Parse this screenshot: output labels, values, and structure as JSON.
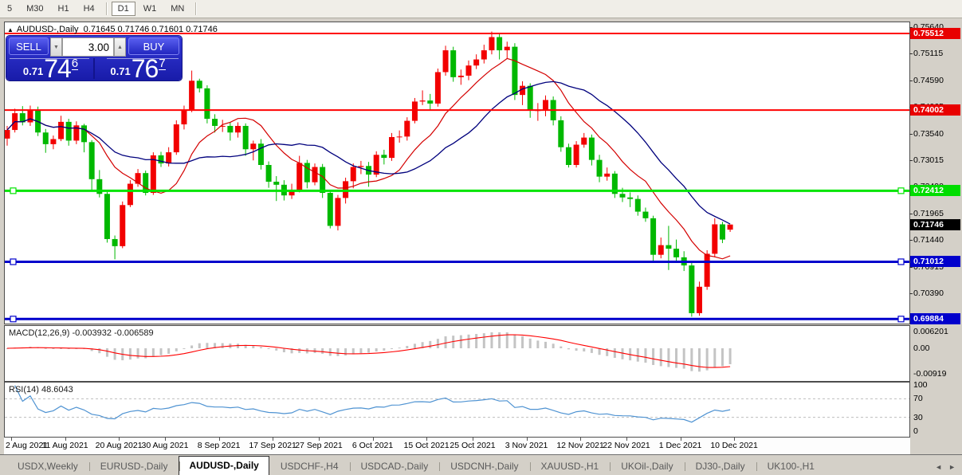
{
  "toolbar": {
    "timeframes": [
      "5",
      "M30",
      "H1",
      "H4",
      "D1",
      "W1",
      "MN"
    ],
    "active": "D1"
  },
  "chart_header": {
    "collapse_icon": "▲",
    "symbol": "AUDUSD-,Daily",
    "ohlc": "0.71645 0.71746 0.71601 0.71746"
  },
  "trade_panel": {
    "sell_label": "SELL",
    "buy_label": "BUY",
    "volume": "3.00",
    "spin_down": "▼",
    "spin_up": "▲",
    "sell_price": {
      "prefix": "0.71",
      "big": "74",
      "sup": "6"
    },
    "buy_price": {
      "prefix": "0.71",
      "big": "76",
      "sup": "7"
    }
  },
  "price_axis": {
    "ticks": [
      "0.75640",
      "0.75115",
      "0.74590",
      "0.74065",
      "0.73540",
      "0.73015",
      "0.72490",
      "0.71965",
      "0.71440",
      "0.70915",
      "0.70390"
    ],
    "badges": [
      {
        "text": "0.75512",
        "price": 0.75512,
        "bg": "#e80000"
      },
      {
        "text": "0.74002",
        "price": 0.74002,
        "bg": "#e80000"
      },
      {
        "text": "0.72412",
        "price": 0.72412,
        "bg": "#00dd00"
      },
      {
        "text": "0.71746",
        "price": 0.71746,
        "bg": "#000000"
      },
      {
        "text": "0.71012",
        "price": 0.71012,
        "bg": "#0000cc"
      },
      {
        "text": "0.69884",
        "price": 0.69884,
        "bg": "#0000cc"
      }
    ]
  },
  "macd": {
    "label": "MACD(12,26,9) -0.003932 -0.006589",
    "axis_labels": [
      {
        "v": 0.006201,
        "t": "0.006201"
      },
      {
        "v": 0.0,
        "t": "0.00"
      },
      {
        "v": -0.00919,
        "t": "-0.00919"
      }
    ]
  },
  "rsi": {
    "label": "RSI(14) 48.6043",
    "axis_labels": [
      {
        "v": 100,
        "t": "100"
      },
      {
        "v": 70,
        "t": "70"
      },
      {
        "v": 30,
        "t": "30"
      },
      {
        "v": 0,
        "t": "0"
      }
    ],
    "dashed_levels": [
      70,
      30
    ]
  },
  "date_axis": {
    "labels": [
      "2 Aug 2021",
      "11 Aug 2021",
      "20 Aug 2021",
      "30 Aug 2021",
      "8 Sep 2021",
      "17 Sep 2021",
      "27 Sep 2021",
      "6 Oct 2021",
      "15 Oct 2021",
      "25 Oct 2021",
      "3 Nov 2021",
      "12 Nov 2021",
      "22 Nov 2021",
      "1 Dec 2021",
      "10 Dec 2021"
    ],
    "label_bars": [
      0,
      7,
      14,
      20,
      27,
      34,
      40,
      47,
      54,
      60,
      67,
      74,
      80,
      87,
      94
    ]
  },
  "tabs": {
    "items": [
      "USDX,Weekly",
      "EURUSD-,Daily",
      "AUDUSD-,Daily",
      "USDCHF-,H4",
      "USDCAD-,Daily",
      "USDCNH-,Daily",
      "XAUUSD-,H1",
      "UKOil-,Daily",
      "DJ30-,Daily",
      "UK100-,H1"
    ],
    "active": "AUDUSD-,Daily",
    "scroll_left": "◄",
    "scroll_right": "►"
  },
  "colors": {
    "bull": "#f20000",
    "bear": "#00b800",
    "ma_fast": "#d40000",
    "ma_slow": "#00007d",
    "macd_hist": "#c4c4c4",
    "macd_signal": "#ff0000",
    "rsi_line": "#4f93d2",
    "dashed_grid": "#bdbdbd"
  },
  "chart_data": {
    "type": "candlestick",
    "symbol": "AUDUSD-",
    "timeframe": "Daily",
    "current_bar": {
      "open": 0.71645,
      "high": 0.71746,
      "low": 0.71601,
      "close": 0.71746
    },
    "ylim": [
      0.6981,
      0.757
    ],
    "x_range": [
      "2 Aug 2021",
      "10 Dec 2021"
    ],
    "moving_averages": [
      {
        "period": 10,
        "color": "#d40000"
      },
      {
        "period": 20,
        "color": "#00007d"
      }
    ],
    "indicators": {
      "macd": {
        "fast": 12,
        "slow": 26,
        "signal": 9,
        "main_value": -0.003932,
        "signal_value": -0.006589,
        "range": [
          -0.00919,
          0.006201
        ]
      },
      "rsi": {
        "period": 14,
        "value": 48.6043,
        "levels": [
          30,
          70
        ],
        "range": [
          0,
          100
        ]
      }
    },
    "levels": [
      {
        "price": 0.75512,
        "color": "#ff0000",
        "width": 2,
        "handles": false
      },
      {
        "price": 0.74002,
        "color": "#ff0000",
        "width": 2,
        "handles": false
      },
      {
        "price": 0.72412,
        "color": "#00e400",
        "width": 3,
        "handles": true
      },
      {
        "price": 0.71012,
        "color": "#0000cc",
        "width": 3,
        "handles": true
      },
      {
        "price": 0.69884,
        "color": "#0000cc",
        "width": 3,
        "handles": true
      }
    ],
    "ohlc": [
      [
        0.7344,
        0.7369,
        0.733,
        0.7361
      ],
      [
        0.7361,
        0.7403,
        0.7356,
        0.7394
      ],
      [
        0.7394,
        0.7408,
        0.737,
        0.7376
      ],
      [
        0.7376,
        0.7409,
        0.7369,
        0.7401
      ],
      [
        0.7401,
        0.7407,
        0.7349,
        0.7356
      ],
      [
        0.7356,
        0.7363,
        0.7316,
        0.7333
      ],
      [
        0.7333,
        0.735,
        0.7323,
        0.7343
      ],
      [
        0.7343,
        0.7389,
        0.7339,
        0.7377
      ],
      [
        0.7377,
        0.7383,
        0.733,
        0.734
      ],
      [
        0.734,
        0.7378,
        0.7333,
        0.737
      ],
      [
        0.737,
        0.7373,
        0.7317,
        0.7337
      ],
      [
        0.7337,
        0.7341,
        0.7242,
        0.7264
      ],
      [
        0.7264,
        0.7282,
        0.7228,
        0.7235
      ],
      [
        0.7235,
        0.7239,
        0.7139,
        0.7146
      ],
      [
        0.7146,
        0.7153,
        0.7106,
        0.7132
      ],
      [
        0.7132,
        0.722,
        0.7128,
        0.7213
      ],
      [
        0.7213,
        0.7262,
        0.7209,
        0.7255
      ],
      [
        0.7255,
        0.7284,
        0.7249,
        0.7276
      ],
      [
        0.7276,
        0.7281,
        0.7232,
        0.7237
      ],
      [
        0.7237,
        0.7317,
        0.7233,
        0.7311
      ],
      [
        0.7311,
        0.7318,
        0.7288,
        0.7295
      ],
      [
        0.7295,
        0.7327,
        0.7289,
        0.7317
      ],
      [
        0.7317,
        0.738,
        0.7312,
        0.7372
      ],
      [
        0.7372,
        0.7409,
        0.7362,
        0.74
      ],
      [
        0.74,
        0.7478,
        0.7396,
        0.7458
      ],
      [
        0.7458,
        0.7462,
        0.7435,
        0.7443
      ],
      [
        0.7443,
        0.7449,
        0.7374,
        0.7383
      ],
      [
        0.7383,
        0.7392,
        0.7356,
        0.7369
      ],
      [
        0.7369,
        0.7381,
        0.7357,
        0.7369
      ],
      [
        0.7369,
        0.7376,
        0.734,
        0.7356
      ],
      [
        0.7356,
        0.7376,
        0.7346,
        0.7369
      ],
      [
        0.7369,
        0.7374,
        0.731,
        0.7323
      ],
      [
        0.7323,
        0.734,
        0.7301,
        0.7334
      ],
      [
        0.7334,
        0.7343,
        0.7283,
        0.7292
      ],
      [
        0.7292,
        0.7299,
        0.7247,
        0.7259
      ],
      [
        0.7259,
        0.727,
        0.7221,
        0.7253
      ],
      [
        0.7253,
        0.7262,
        0.7222,
        0.7232
      ],
      [
        0.7232,
        0.7255,
        0.7225,
        0.7243
      ],
      [
        0.7243,
        0.731,
        0.7238,
        0.7296
      ],
      [
        0.7296,
        0.7302,
        0.7246,
        0.7258
      ],
      [
        0.7258,
        0.7295,
        0.7252,
        0.7288
      ],
      [
        0.7288,
        0.7294,
        0.7227,
        0.7237
      ],
      [
        0.7237,
        0.7242,
        0.7167,
        0.7172
      ],
      [
        0.7172,
        0.7233,
        0.7163,
        0.7227
      ],
      [
        0.7227,
        0.7267,
        0.7216,
        0.726
      ],
      [
        0.726,
        0.7295,
        0.7246,
        0.7288
      ],
      [
        0.7288,
        0.73,
        0.7274,
        0.729
      ],
      [
        0.729,
        0.7298,
        0.7249,
        0.7273
      ],
      [
        0.7273,
        0.7319,
        0.7268,
        0.7312
      ],
      [
        0.7312,
        0.7322,
        0.7293,
        0.7306
      ],
      [
        0.7306,
        0.7355,
        0.73,
        0.7347
      ],
      [
        0.7347,
        0.736,
        0.7336,
        0.7348
      ],
      [
        0.7348,
        0.7386,
        0.734,
        0.7379
      ],
      [
        0.7379,
        0.7424,
        0.7374,
        0.7417
      ],
      [
        0.7417,
        0.7439,
        0.741,
        0.7419
      ],
      [
        0.7419,
        0.7432,
        0.74,
        0.7413
      ],
      [
        0.7413,
        0.7482,
        0.7407,
        0.7475
      ],
      [
        0.7475,
        0.7527,
        0.7468,
        0.7518
      ],
      [
        0.7518,
        0.7525,
        0.7456,
        0.7465
      ],
      [
        0.7465,
        0.748,
        0.745,
        0.7468
      ],
      [
        0.7468,
        0.7498,
        0.7459,
        0.7488
      ],
      [
        0.7488,
        0.751,
        0.7481,
        0.75
      ],
      [
        0.75,
        0.7529,
        0.7492,
        0.7518
      ],
      [
        0.7518,
        0.7555,
        0.751,
        0.7544
      ],
      [
        0.7544,
        0.755,
        0.75,
        0.7518
      ],
      [
        0.7518,
        0.7535,
        0.7502,
        0.7525
      ],
      [
        0.7525,
        0.7532,
        0.742,
        0.743
      ],
      [
        0.743,
        0.7457,
        0.741,
        0.7448
      ],
      [
        0.7448,
        0.7453,
        0.7385,
        0.74
      ],
      [
        0.74,
        0.7414,
        0.7379,
        0.74
      ],
      [
        0.74,
        0.7429,
        0.7388,
        0.742
      ],
      [
        0.742,
        0.7427,
        0.737,
        0.738
      ],
      [
        0.738,
        0.7388,
        0.7318,
        0.7327
      ],
      [
        0.7327,
        0.7334,
        0.7287,
        0.7292
      ],
      [
        0.7292,
        0.7339,
        0.7287,
        0.7332
      ],
      [
        0.7332,
        0.7355,
        0.7326,
        0.7346
      ],
      [
        0.7346,
        0.7352,
        0.7291,
        0.7302
      ],
      [
        0.7302,
        0.7312,
        0.7258,
        0.7269
      ],
      [
        0.7269,
        0.7287,
        0.7261,
        0.7275
      ],
      [
        0.7275,
        0.728,
        0.7227,
        0.7235
      ],
      [
        0.7235,
        0.7247,
        0.7219,
        0.7228
      ],
      [
        0.7228,
        0.7238,
        0.7209,
        0.7225
      ],
      [
        0.7225,
        0.7232,
        0.7192,
        0.72
      ],
      [
        0.72,
        0.7208,
        0.718,
        0.7187
      ],
      [
        0.7187,
        0.7192,
        0.7102,
        0.7115
      ],
      [
        0.7115,
        0.7149,
        0.7108,
        0.7134
      ],
      [
        0.7134,
        0.7172,
        0.7085,
        0.7127
      ],
      [
        0.7127,
        0.7145,
        0.71,
        0.711
      ],
      [
        0.711,
        0.7122,
        0.7083,
        0.7094
      ],
      [
        0.7094,
        0.7102,
        0.6993,
        0.7
      ],
      [
        0.7,
        0.7062,
        0.6995,
        0.7052
      ],
      [
        0.7052,
        0.7124,
        0.7046,
        0.7117
      ],
      [
        0.7117,
        0.7187,
        0.711,
        0.7175
      ],
      [
        0.7175,
        0.718,
        0.7138,
        0.7145
      ],
      [
        0.71645,
        0.71746,
        0.71601,
        0.71746
      ]
    ]
  }
}
